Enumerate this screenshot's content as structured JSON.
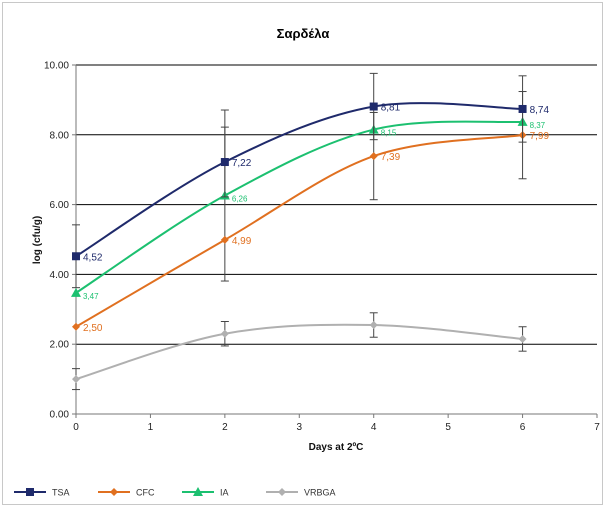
{
  "chart_data": {
    "type": "line",
    "title": "Σαρδέλα",
    "xlabel": "Days at 2ºC",
    "ylabel": "log (cfu/g)",
    "xlim": [
      0,
      7
    ],
    "ylim": [
      0,
      10
    ],
    "x_ticks": [
      "0",
      "1",
      "2",
      "3",
      "4",
      "5",
      "6",
      "7"
    ],
    "y_ticks": [
      "0.00",
      "2.00",
      "4.00",
      "6.00",
      "8.00",
      "10.00"
    ],
    "grid": "horizontal",
    "legend": "bottom",
    "x": [
      0,
      2,
      4,
      6
    ],
    "series": [
      {
        "name": "TSA",
        "color": "#1f2a6b",
        "marker": "square",
        "values": [
          4.52,
          7.22,
          8.81,
          8.74
        ],
        "errors": [
          0.9,
          1.0,
          0.95,
          0.95
        ],
        "labels": [
          "4,52",
          "7,22",
          "8,81",
          "8,74"
        ]
      },
      {
        "name": "CFC",
        "color": "#e07020",
        "marker": "diamond",
        "values": [
          2.5,
          4.99,
          7.39,
          7.99
        ],
        "errors": [
          0.0,
          0.0,
          1.25,
          1.25
        ],
        "labels": [
          "2,50",
          "4,99",
          "7,39",
          "7,99"
        ]
      },
      {
        "name": "IA",
        "color": "#1cc070",
        "marker": "triangle",
        "values": [
          3.47,
          6.26,
          8.15,
          8.37
        ],
        "errors": [
          0.0,
          2.45,
          0.0,
          0.0
        ],
        "labels": [
          "3,47",
          "6,26",
          "8,15",
          "8,37"
        ]
      },
      {
        "name": "VRBGA",
        "color": "#b0b0b0",
        "marker": "diamond",
        "values": [
          1.0,
          2.3,
          2.55,
          2.15
        ],
        "errors": [
          0.3,
          0.35,
          0.35,
          0.35
        ],
        "labels": []
      }
    ]
  }
}
